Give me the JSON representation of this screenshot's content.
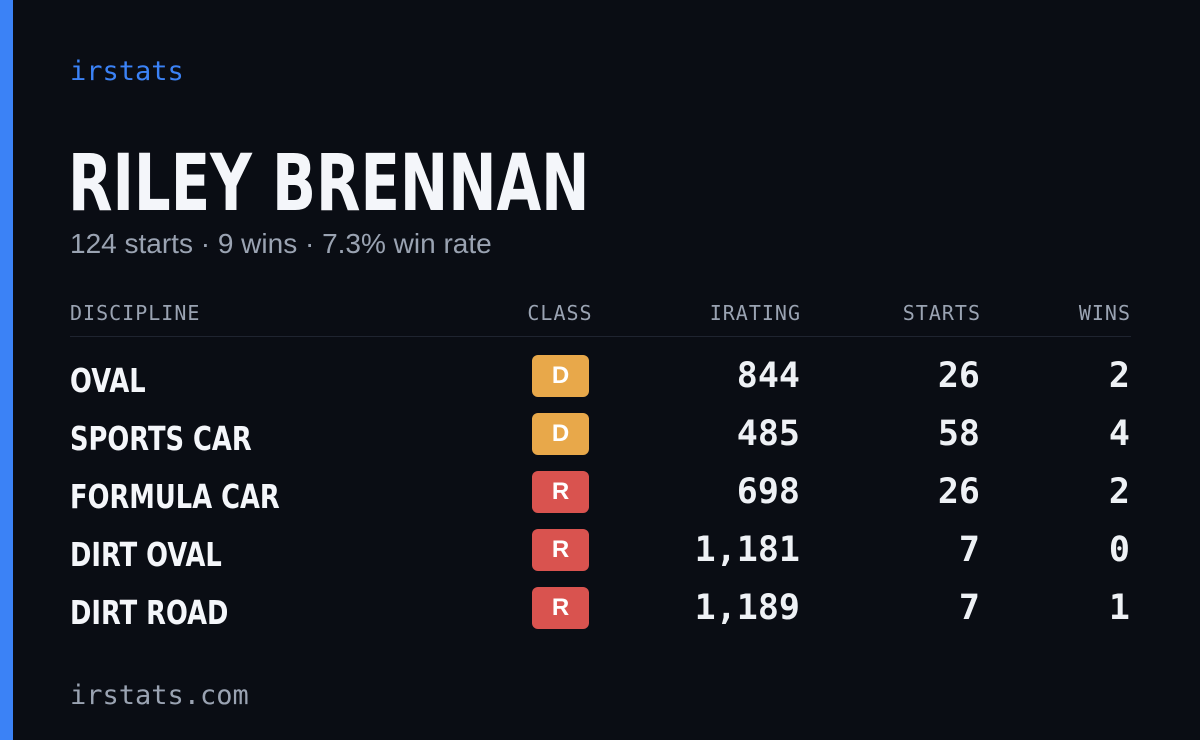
{
  "brand": "irstats",
  "driver": {
    "name": "RILEY BRENNAN",
    "summary": "124 starts · 9 wins · 7.3% win rate"
  },
  "table": {
    "headers": {
      "discipline": "DISCIPLINE",
      "class": "CLASS",
      "irating": "IRATING",
      "starts": "STARTS",
      "wins": "WINS"
    },
    "rows": [
      {
        "discipline": "OVAL",
        "class": "D",
        "irating": "844",
        "starts": "26",
        "wins": "2"
      },
      {
        "discipline": "SPORTS CAR",
        "class": "D",
        "irating": "485",
        "starts": "58",
        "wins": "4"
      },
      {
        "discipline": "FORMULA CAR",
        "class": "R",
        "irating": "698",
        "starts": "26",
        "wins": "2"
      },
      {
        "discipline": "DIRT OVAL",
        "class": "R",
        "irating": "1,181",
        "starts": "7",
        "wins": "0"
      },
      {
        "discipline": "DIRT ROAD",
        "class": "R",
        "irating": "1,189",
        "starts": "7",
        "wins": "1"
      }
    ]
  },
  "class_colors": {
    "D": "#e8a84a",
    "R": "#d9534f"
  },
  "colors": {
    "accent": "#3b82f6",
    "background": "#0a0d14",
    "muted": "#9aa3b2"
  },
  "footer": "irstats.com"
}
